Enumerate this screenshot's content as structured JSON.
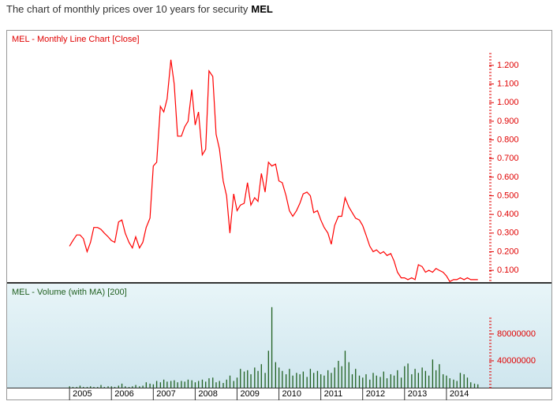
{
  "header": {
    "text": "The chart of monthly prices over 10 years for security",
    "security": "MEL"
  },
  "chart_data": [
    {
      "type": "line",
      "title": "MEL - Monthly Line Chart [Close]",
      "color": "#ff0000",
      "x": [
        2005.0,
        2005.08,
        2005.17,
        2005.25,
        2005.33,
        2005.42,
        2005.5,
        2005.58,
        2005.67,
        2005.75,
        2005.83,
        2005.92,
        2006.0,
        2006.08,
        2006.17,
        2006.25,
        2006.33,
        2006.42,
        2006.5,
        2006.58,
        2006.67,
        2006.75,
        2006.83,
        2006.92,
        2007.0,
        2007.08,
        2007.17,
        2007.25,
        2007.33,
        2007.42,
        2007.5,
        2007.58,
        2007.67,
        2007.75,
        2007.83,
        2007.92,
        2008.0,
        2008.08,
        2008.17,
        2008.25,
        2008.33,
        2008.42,
        2008.5,
        2008.58,
        2008.67,
        2008.75,
        2008.83,
        2008.92,
        2009.0,
        2009.08,
        2009.17,
        2009.25,
        2009.33,
        2009.42,
        2009.5,
        2009.58,
        2009.67,
        2009.75,
        2009.83,
        2009.92,
        2010.0,
        2010.08,
        2010.17,
        2010.25,
        2010.33,
        2010.42,
        2010.5,
        2010.58,
        2010.67,
        2010.75,
        2010.83,
        2010.92,
        2011.0,
        2011.08,
        2011.17,
        2011.25,
        2011.33,
        2011.42,
        2011.5,
        2011.58,
        2011.67,
        2011.75,
        2011.83,
        2011.92,
        2012.0,
        2012.08,
        2012.17,
        2012.25,
        2012.33,
        2012.42,
        2012.5,
        2012.58,
        2012.67,
        2012.75,
        2012.83,
        2012.92,
        2013.0,
        2013.08,
        2013.17,
        2013.25,
        2013.33,
        2013.42,
        2013.5,
        2013.58,
        2013.67,
        2013.75,
        2013.83,
        2013.92,
        2014.0,
        2014.08,
        2014.17,
        2014.25,
        2014.33,
        2014.42,
        2014.5,
        2014.58,
        2014.67,
        2014.75
      ],
      "values": [
        0.23,
        0.26,
        0.29,
        0.29,
        0.27,
        0.2,
        0.25,
        0.33,
        0.33,
        0.32,
        0.3,
        0.28,
        0.26,
        0.25,
        0.36,
        0.37,
        0.3,
        0.25,
        0.22,
        0.28,
        0.22,
        0.25,
        0.33,
        0.38,
        0.66,
        0.68,
        0.98,
        0.95,
        1.02,
        1.23,
        1.1,
        0.82,
        0.82,
        0.87,
        0.9,
        1.07,
        0.88,
        0.95,
        0.72,
        0.75,
        1.17,
        1.14,
        0.83,
        0.75,
        0.58,
        0.5,
        0.3,
        0.51,
        0.42,
        0.45,
        0.46,
        0.57,
        0.45,
        0.49,
        0.47,
        0.62,
        0.52,
        0.68,
        0.66,
        0.67,
        0.58,
        0.57,
        0.5,
        0.42,
        0.39,
        0.42,
        0.46,
        0.51,
        0.52,
        0.5,
        0.41,
        0.42,
        0.37,
        0.33,
        0.3,
        0.24,
        0.34,
        0.39,
        0.39,
        0.49,
        0.44,
        0.41,
        0.38,
        0.37,
        0.34,
        0.29,
        0.23,
        0.2,
        0.21,
        0.19,
        0.2,
        0.18,
        0.19,
        0.15,
        0.09,
        0.06,
        0.06,
        0.05,
        0.06,
        0.05,
        0.13,
        0.12,
        0.09,
        0.1,
        0.09,
        0.11,
        0.1,
        0.09,
        0.07,
        0.04,
        0.05,
        0.05,
        0.06,
        0.05,
        0.06,
        0.05,
        0.05,
        0.05
      ],
      "xlim": [
        2003.49,
        2015.02
      ],
      "ylim": [
        0.037,
        1.39
      ],
      "yticks": [
        {
          "value": 0.1,
          "label": "0.100"
        },
        {
          "value": 0.2,
          "label": "0.200"
        },
        {
          "value": 0.3,
          "label": "0.300"
        },
        {
          "value": 0.4,
          "label": "0.400"
        },
        {
          "value": 0.5,
          "label": "0.500"
        },
        {
          "value": 0.6,
          "label": "0.600"
        },
        {
          "value": 0.7,
          "label": "0.700"
        },
        {
          "value": 0.8,
          "label": "0.800"
        },
        {
          "value": 0.9,
          "label": "0.900"
        },
        {
          "value": 1.0,
          "label": "1.000"
        },
        {
          "value": 1.1,
          "label": "1.100"
        },
        {
          "value": 1.2,
          "label": "1.200"
        }
      ]
    },
    {
      "type": "bar",
      "title": "MEL - Volume (with MA) [200]",
      "color": "#1f5f1f",
      "values": [
        2000000,
        1000000,
        1000000,
        3000000,
        1000000,
        1000000,
        2000000,
        1000000,
        1000000,
        4000000,
        1000000,
        2000000,
        2000000,
        1000000,
        3000000,
        6000000,
        2000000,
        1000000,
        2000000,
        4000000,
        2000000,
        3000000,
        8000000,
        6000000,
        5000000,
        10000000,
        8000000,
        12000000,
        9000000,
        10000000,
        11000000,
        8000000,
        10000000,
        9000000,
        12000000,
        11000000,
        8000000,
        10000000,
        12000000,
        9000000,
        14000000,
        15000000,
        8000000,
        10000000,
        7000000,
        12000000,
        18000000,
        10000000,
        15000000,
        28000000,
        24000000,
        26000000,
        20000000,
        30000000,
        25000000,
        35000000,
        22000000,
        55000000,
        120000000,
        38000000,
        30000000,
        25000000,
        20000000,
        28000000,
        18000000,
        22000000,
        20000000,
        24000000,
        16000000,
        28000000,
        22000000,
        25000000,
        20000000,
        18000000,
        26000000,
        22000000,
        30000000,
        40000000,
        32000000,
        55000000,
        38000000,
        20000000,
        28000000,
        18000000,
        15000000,
        20000000,
        12000000,
        22000000,
        18000000,
        16000000,
        24000000,
        14000000,
        20000000,
        18000000,
        26000000,
        15000000,
        32000000,
        36000000,
        20000000,
        28000000,
        22000000,
        30000000,
        25000000,
        18000000,
        42000000,
        26000000,
        35000000,
        20000000,
        18000000,
        14000000,
        12000000,
        10000000,
        22000000,
        20000000,
        15000000,
        8000000,
        6000000,
        5000000
      ],
      "ylim": [
        0,
        155000000
      ],
      "yticks": [
        40000000,
        80000000
      ],
      "xticks": [
        2005,
        2006,
        2007,
        2008,
        2009,
        2010,
        2011,
        2012,
        2013,
        2014
      ]
    }
  ]
}
